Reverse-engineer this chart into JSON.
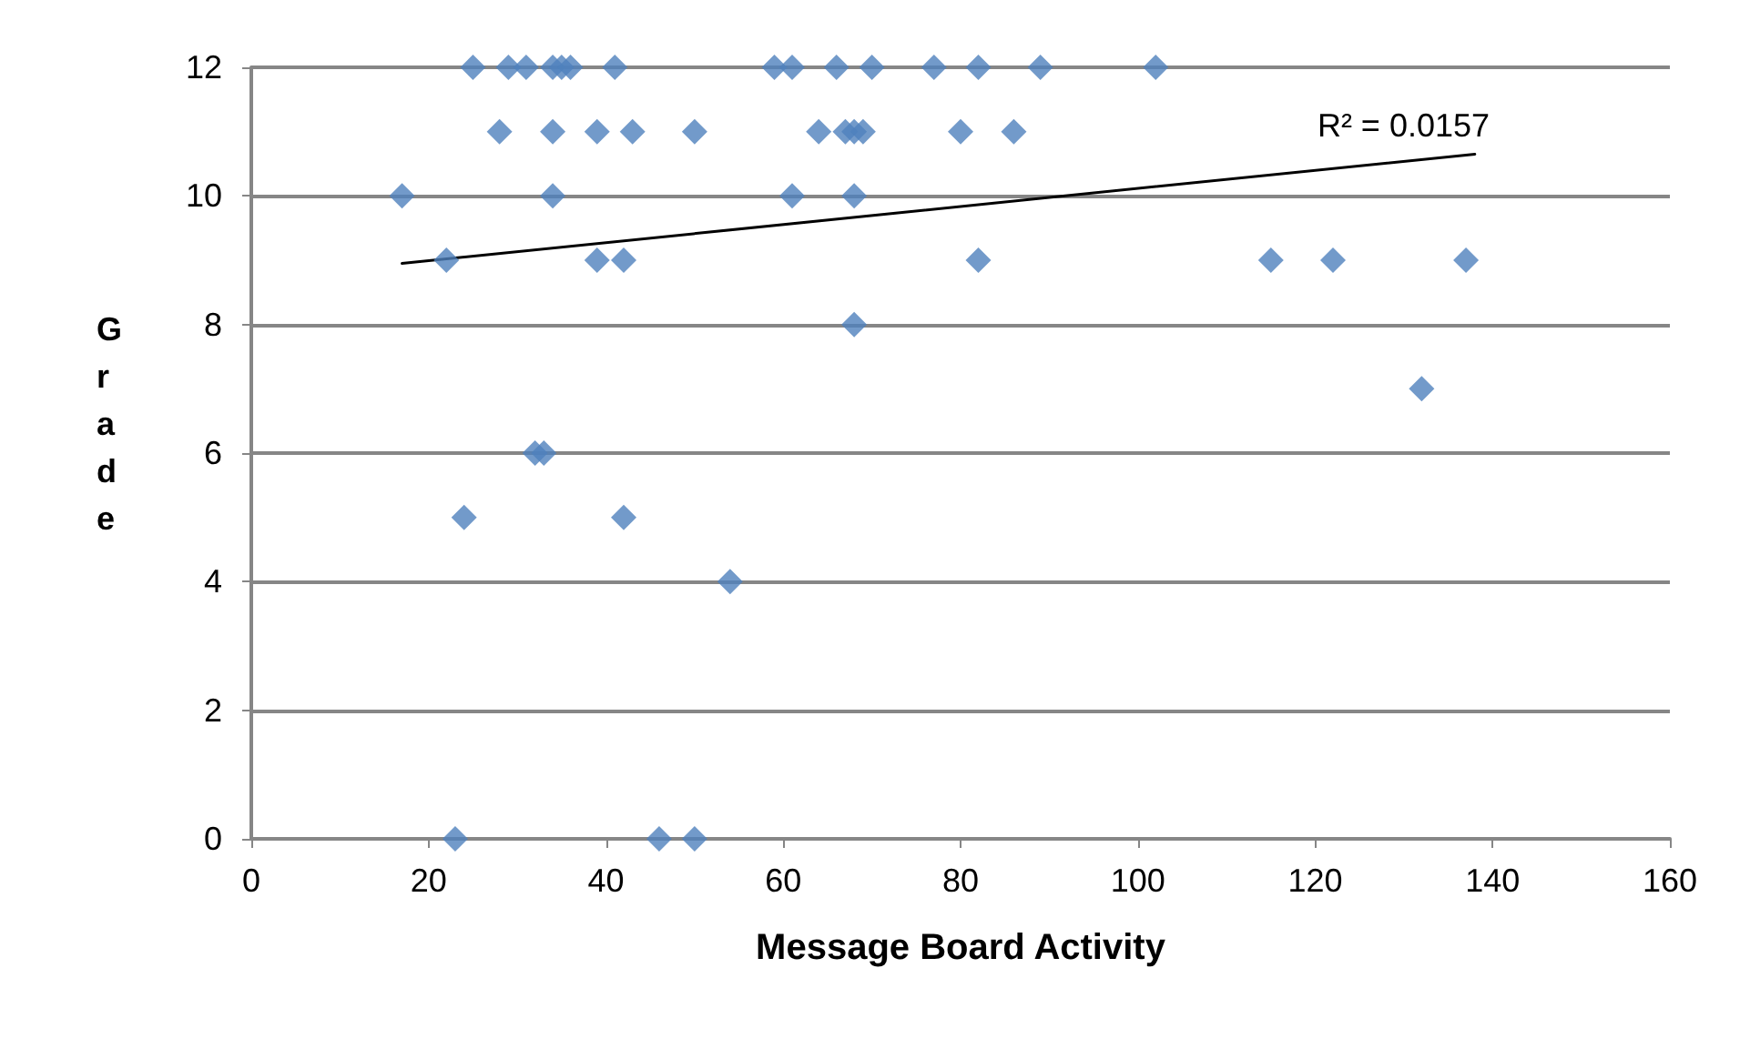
{
  "chart_data": {
    "type": "scatter",
    "xlabel": "Message Board Activity",
    "ylabel": "Grade",
    "xlim": [
      0,
      160
    ],
    "xticks": [
      0,
      20,
      40,
      60,
      80,
      100,
      120,
      140,
      160
    ],
    "ylim": [
      0,
      12
    ],
    "yticks": [
      0,
      2,
      4,
      6,
      8,
      10,
      12
    ],
    "grid": "y",
    "marker": "diamond",
    "annotations": [
      "R² = 0.0157"
    ],
    "series": [
      {
        "color": "#4f81bd",
        "x": [
          25,
          29,
          31,
          34,
          35,
          36,
          41,
          59,
          61,
          66,
          70,
          77,
          82,
          89,
          102,
          28,
          34,
          39,
          43,
          50,
          64,
          67,
          68,
          69,
          80,
          86,
          17,
          34,
          61,
          68,
          22,
          39,
          42,
          82,
          115,
          122,
          137,
          68,
          132,
          32,
          33,
          24,
          42,
          54,
          23,
          46,
          50
        ],
        "values": [
          12,
          12,
          12,
          12,
          12,
          12,
          12,
          12,
          12,
          12,
          12,
          12,
          12,
          12,
          12,
          11,
          11,
          11,
          11,
          11,
          11,
          11,
          11,
          11,
          11,
          11,
          10,
          10,
          10,
          10,
          9,
          9,
          9,
          9,
          9,
          9,
          9,
          8,
          7,
          6,
          6,
          5,
          5,
          4,
          0,
          0,
          0
        ]
      },
      {
        "type": "line",
        "color": "#000000",
        "marker": "none",
        "line_style": "solid",
        "x": [
          17,
          138
        ],
        "values": [
          8.95,
          10.65
        ]
      }
    ]
  }
}
